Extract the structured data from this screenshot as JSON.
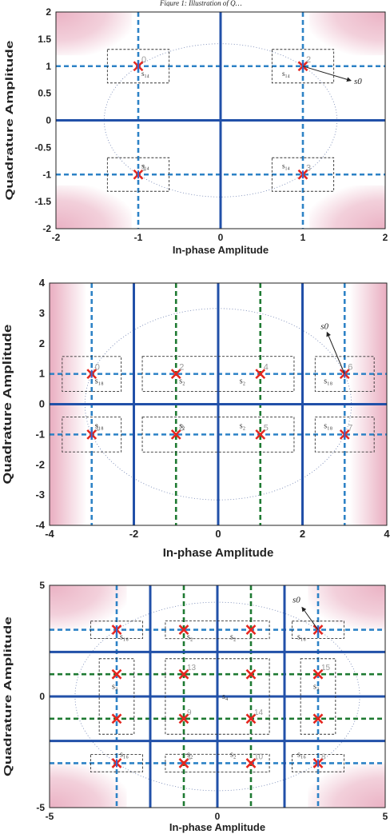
{
  "figure": {
    "header_fragment": "Figure 1: Illustration of Q…"
  },
  "colors": {
    "axis_line": "#2150a8",
    "boundary_blue": "#2150a8",
    "dash_blue": "#2d82c6",
    "dash_green": "#1e7a32",
    "marker_red": "#e5261f",
    "marker_blue": "#3b62c8",
    "shade_pink": "#e8a9bd",
    "circle": "#6c7fb0",
    "box": "#333333"
  },
  "chart_data": [
    {
      "type": "scatter",
      "title": "",
      "xlabel": "In-phase Amplitude",
      "ylabel": "Quadrature Amplitude",
      "xlim": [
        -2,
        2
      ],
      "ylim": [
        -2,
        2
      ],
      "xticks": [
        "-2",
        "-1",
        "0",
        "1",
        "2"
      ],
      "yticks": [
        "2",
        "1.5",
        "1",
        "0.5",
        "0",
        "-0.5",
        "-1",
        "-1.5",
        "-2"
      ],
      "constellation": "QPSK",
      "points": [
        {
          "x": -1,
          "y": 1,
          "label": "0",
          "group": "s₁₄"
        },
        {
          "x": 1,
          "y": 1,
          "label": "2",
          "group": "s₁₄"
        },
        {
          "x": -1,
          "y": -1,
          "label": "1",
          "group": "s₁₄"
        },
        {
          "x": 1,
          "y": -1,
          "label": "3",
          "group": "s₁₄"
        }
      ],
      "decision_boundaries": [
        0
      ],
      "arrow_label": "s0",
      "circle_radius": 1.414,
      "grid": false
    },
    {
      "type": "scatter",
      "title": "",
      "xlabel": "In-phase Amplitude",
      "ylabel": "Quadrature Amplitude",
      "xlim": [
        -4,
        4
      ],
      "ylim": [
        -4,
        4
      ],
      "xticks": [
        "-4",
        "-2",
        "0",
        "2",
        "4"
      ],
      "yticks": [
        "4",
        "3",
        "2",
        "1",
        "0",
        "-1",
        "-2",
        "-3",
        "-4"
      ],
      "constellation": "8-QAM",
      "points": [
        {
          "x": -3,
          "y": 1,
          "label": "0",
          "group": "s₁₈"
        },
        {
          "x": -1,
          "y": 1,
          "label": "2",
          "group": "s₂"
        },
        {
          "x": 1,
          "y": 1,
          "label": "4",
          "group": "s₂"
        },
        {
          "x": 3,
          "y": 1,
          "label": "6",
          "group": "s₁₈"
        },
        {
          "x": -3,
          "y": -1,
          "label": "1",
          "group": "s₁₈"
        },
        {
          "x": -1,
          "y": -1,
          "label": "3",
          "group": "s₂"
        },
        {
          "x": 1,
          "y": -1,
          "label": "5",
          "group": "s₂"
        },
        {
          "x": 3,
          "y": -1,
          "label": "7",
          "group": "s₁₈"
        }
      ],
      "decision_boundaries_x": [
        -2,
        0,
        2
      ],
      "decision_boundaries_y": [
        0
      ],
      "arrow_label": "s0",
      "circle_radius": 3.16,
      "grid": false
    },
    {
      "type": "scatter",
      "title": "",
      "xlabel": "In-phase Amplitude",
      "ylabel": "Quadrature Amplitude",
      "xlim": [
        -5,
        5
      ],
      "ylim": [
        -5,
        5
      ],
      "xticks": [
        "-5",
        "0",
        "5"
      ],
      "yticks": [
        "5",
        "0",
        "-5"
      ],
      "constellation": "16-QAM",
      "points": [
        {
          "x": -3,
          "y": 3,
          "label": "",
          "group": "s₁₆"
        },
        {
          "x": -1,
          "y": 3,
          "label": "",
          "group": "s₂"
        },
        {
          "x": 1,
          "y": 3,
          "label": "",
          "group": "s₂"
        },
        {
          "x": 3,
          "y": 3,
          "label": "",
          "group": "s₁₆"
        },
        {
          "x": -3,
          "y": 1,
          "label": "",
          "group": "s₃"
        },
        {
          "x": -1,
          "y": 1,
          "label": "13",
          "group": "s₄"
        },
        {
          "x": 1,
          "y": 1,
          "label": "",
          "group": "s₄"
        },
        {
          "x": 3,
          "y": 1,
          "label": "15",
          "group": "s₃"
        },
        {
          "x": -3,
          "y": -1,
          "label": "",
          "group": "s₃"
        },
        {
          "x": -1,
          "y": -1,
          "label": "9",
          "group": "s₄"
        },
        {
          "x": 1,
          "y": -1,
          "label": "14",
          "group": "s₄"
        },
        {
          "x": 3,
          "y": -1,
          "label": "",
          "group": "s₃"
        },
        {
          "x": -3,
          "y": -3,
          "label": "",
          "group": "s₁₆"
        },
        {
          "x": -1,
          "y": -3,
          "label": "1",
          "group": "s₂"
        },
        {
          "x": 1,
          "y": -3,
          "label": "10",
          "group": "s₂"
        },
        {
          "x": 3,
          "y": -3,
          "label": "8",
          "group": "s₁₆"
        }
      ],
      "group_labels": [
        "s₃",
        "s₄",
        "s₃"
      ],
      "decision_boundaries": [
        -2,
        0,
        2
      ],
      "arrow_label": "s0",
      "circle_radius": 4.24,
      "grid": false
    }
  ]
}
